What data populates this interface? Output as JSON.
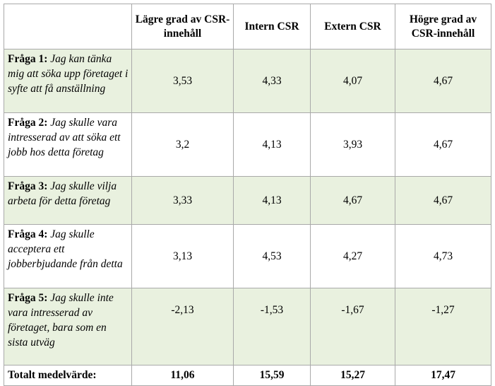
{
  "table": {
    "headers": [
      "",
      "Lägre grad av CSR-innehåll",
      "Intern CSR",
      "Extern CSR",
      "Högre grad av CSR-innehåll"
    ],
    "rows": [
      {
        "label": "Fråga 1",
        "sep": ":",
        "text": "Jag kan tänka mig att söka upp företaget i syfte att få anställning",
        "values": [
          "3,53",
          "4,33",
          "4,07",
          "4,67"
        ]
      },
      {
        "label": "Fråga 2",
        "sep": ":",
        "text": "Jag skulle vara intresserad av att söka ett jobb hos detta företag",
        "values": [
          "3,2",
          "4,13",
          "3,93",
          "4,67"
        ]
      },
      {
        "label": "Fråga 3",
        "sep": ":",
        "text": "Jag skulle vilja arbeta för detta företag",
        "values": [
          "3,33",
          "4,13",
          "4,67",
          "4,67"
        ]
      },
      {
        "label": "Fråga 4",
        "sep": ":",
        "text": "Jag skulle acceptera ett jobberbjudande från detta",
        "values": [
          "3,13",
          "4,53",
          "4,27",
          "4,73"
        ]
      },
      {
        "label": "Fråga 5",
        "sep": ":",
        "text": "Jag skulle inte vara intresserad av företaget, bara som en sista utväg",
        "values": [
          "-2,13",
          "-1,53",
          "-1,67",
          "-1,27"
        ]
      }
    ],
    "total": {
      "label": "Totalt medelvärde:",
      "values": [
        "11,06",
        "15,59",
        "15,27",
        "17,47"
      ]
    }
  }
}
